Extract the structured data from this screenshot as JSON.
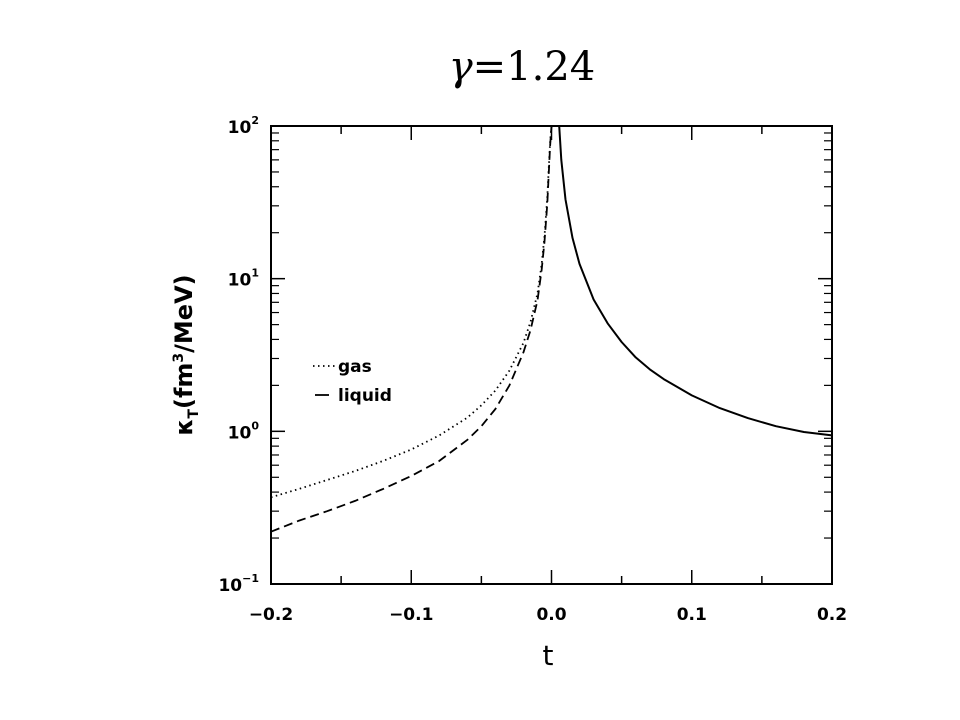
{
  "chart_data": {
    "type": "line",
    "title_symbol": "γ",
    "title_rest": "=1.24",
    "xlabel": "t",
    "ylabel": {
      "symbol": "κ",
      "subscript": "T",
      "open": "(fm",
      "superscript": "3",
      "close": "/MeV)"
    },
    "xlim": [
      -0.2,
      0.2
    ],
    "ylim": [
      0.1,
      100
    ],
    "yscale": "log",
    "grid": false,
    "legend_position": "left",
    "x_ticks": [
      {
        "value": -0.2,
        "label": "−0.2"
      },
      {
        "value": -0.1,
        "label": "−0.1"
      },
      {
        "value": 0.0,
        "label": "0.0"
      },
      {
        "value": 0.1,
        "label": "0.1"
      },
      {
        "value": 0.2,
        "label": "0.2"
      }
    ],
    "y_ticks": [
      {
        "value": 0.1,
        "base": "10",
        "exp": "−1"
      },
      {
        "value": 1,
        "base": "10",
        "exp": "0"
      },
      {
        "value": 10,
        "base": "10",
        "exp": "1"
      },
      {
        "value": 100,
        "base": "10",
        "exp": "2"
      }
    ],
    "series": [
      {
        "name": "gas",
        "style": "dotted",
        "x": [
          -0.2,
          -0.18,
          -0.16,
          -0.14,
          -0.12,
          -0.1,
          -0.08,
          -0.06,
          -0.05,
          -0.04,
          -0.03,
          -0.02,
          -0.015,
          -0.01,
          -0.007,
          -0.005,
          -0.003,
          -0.002,
          -0.001,
          0.0
        ],
        "y": [
          0.37,
          0.42,
          0.48,
          0.55,
          0.64,
          0.76,
          0.94,
          1.23,
          1.48,
          1.85,
          2.5,
          3.8,
          5.2,
          8.0,
          12.5,
          19.0,
          34.0,
          52.0,
          78.0,
          100.0
        ]
      },
      {
        "name": "liquid",
        "style": "dashed",
        "x": [
          -0.2,
          -0.18,
          -0.16,
          -0.14,
          -0.12,
          -0.1,
          -0.08,
          -0.06,
          -0.05,
          -0.04,
          -0.03,
          -0.02,
          -0.015,
          -0.01,
          -0.007,
          -0.005,
          -0.003,
          -0.002,
          -0.001,
          0.0
        ],
        "y": [
          0.22,
          0.26,
          0.3,
          0.35,
          0.42,
          0.51,
          0.64,
          0.88,
          1.08,
          1.4,
          2.0,
          3.3,
          4.6,
          7.2,
          11.5,
          17.5,
          31.0,
          48.0,
          74.0,
          100.0
        ]
      },
      {
        "name": "",
        "style": "solid",
        "x": [
          0.0055,
          0.007,
          0.01,
          0.015,
          0.02,
          0.03,
          0.04,
          0.05,
          0.06,
          0.07,
          0.08,
          0.1,
          0.12,
          0.14,
          0.16,
          0.18,
          0.2
        ],
        "y": [
          100.0,
          60.0,
          33.0,
          18.5,
          12.5,
          7.3,
          5.1,
          3.85,
          3.05,
          2.55,
          2.2,
          1.72,
          1.42,
          1.22,
          1.08,
          0.99,
          0.94
        ]
      }
    ]
  }
}
